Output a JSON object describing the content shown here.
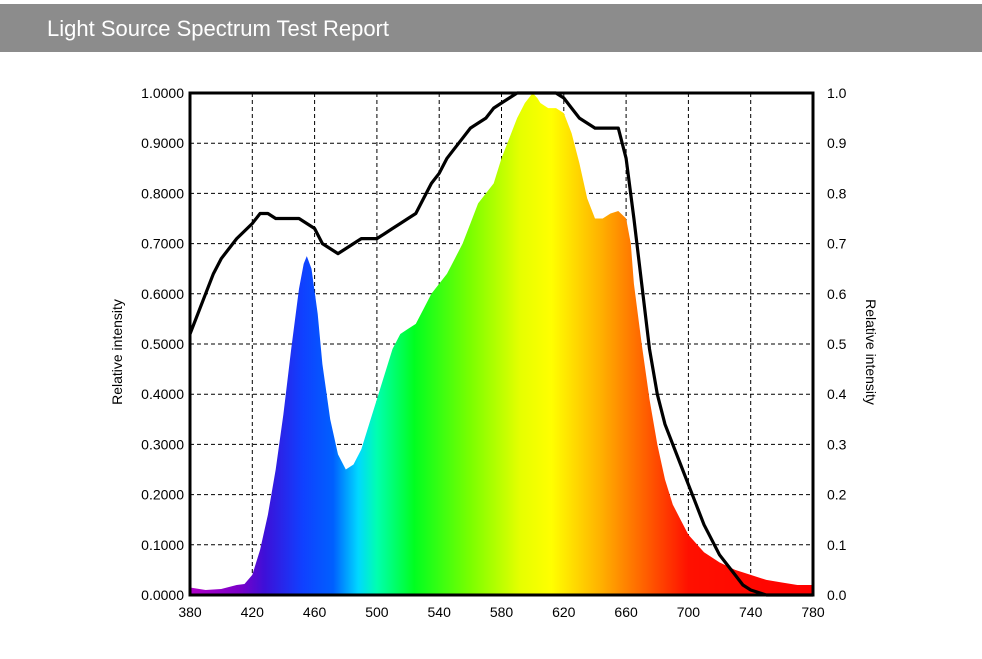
{
  "header": {
    "title": "Light Source Spectrum Test Report"
  },
  "colors": {
    "header_bg": "#8c8c8c",
    "curve": "#000000",
    "frame": "#000000"
  },
  "chart_data": {
    "type": "area",
    "title": "",
    "xlabel": "",
    "ylabel": "Relative intensity",
    "y2label": "Relative intensity",
    "xlim": [
      380,
      780
    ],
    "ylim": [
      0,
      1
    ],
    "y2lim": [
      0,
      1
    ],
    "grid": true,
    "legend": "none",
    "x_ticks": [
      "380",
      "420",
      "460",
      "500",
      "540",
      "580",
      "620",
      "660",
      "700",
      "740",
      "780"
    ],
    "y_ticks": [
      "0.0000",
      "0.1000",
      "0.2000",
      "0.3000",
      "0.4000",
      "0.5000",
      "0.6000",
      "0.7000",
      "0.8000",
      "0.9000",
      "1.0000"
    ],
    "y2_ticks": [
      "0.0",
      "0.1",
      "0.2",
      "0.3",
      "0.4",
      "0.5",
      "0.6",
      "0.7",
      "0.8",
      "0.9",
      "1.0"
    ],
    "series": [
      {
        "kind": "spectral fill",
        "x": [
          380,
          390,
          400,
          410,
          415,
          420,
          425,
          430,
          435,
          440,
          445,
          450,
          453,
          455,
          458,
          462,
          465,
          470,
          475,
          480,
          485,
          490,
          495,
          500,
          505,
          510,
          515,
          520,
          525,
          530,
          535,
          540,
          545,
          550,
          555,
          560,
          565,
          570,
          575,
          580,
          585,
          590,
          595,
          600,
          603,
          605,
          610,
          615,
          620,
          625,
          630,
          635,
          640,
          645,
          650,
          655,
          660,
          663,
          665,
          670,
          675,
          680,
          685,
          690,
          695,
          700,
          710,
          720,
          730,
          740,
          750,
          760,
          770,
          780
        ],
        "y": [
          0.015,
          0.01,
          0.012,
          0.02,
          0.022,
          0.04,
          0.09,
          0.16,
          0.25,
          0.36,
          0.49,
          0.61,
          0.66,
          0.675,
          0.65,
          0.56,
          0.46,
          0.35,
          0.28,
          0.25,
          0.26,
          0.29,
          0.34,
          0.39,
          0.44,
          0.49,
          0.52,
          0.53,
          0.54,
          0.57,
          0.6,
          0.62,
          0.64,
          0.67,
          0.7,
          0.74,
          0.78,
          0.8,
          0.82,
          0.87,
          0.91,
          0.95,
          0.98,
          1.0,
          0.99,
          0.98,
          0.97,
          0.97,
          0.96,
          0.92,
          0.86,
          0.79,
          0.75,
          0.75,
          0.76,
          0.765,
          0.75,
          0.7,
          0.62,
          0.5,
          0.39,
          0.3,
          0.23,
          0.18,
          0.15,
          0.12,
          0.085,
          0.065,
          0.05,
          0.04,
          0.03,
          0.025,
          0.02,
          0.02
        ]
      },
      {
        "kind": "line",
        "x": [
          380,
          385,
          390,
          395,
          400,
          410,
          420,
          425,
          430,
          435,
          440,
          445,
          450,
          455,
          460,
          465,
          470,
          475,
          480,
          485,
          490,
          495,
          500,
          505,
          510,
          515,
          520,
          525,
          530,
          535,
          540,
          545,
          550,
          555,
          560,
          565,
          570,
          575,
          580,
          585,
          590,
          595,
          600,
          605,
          610,
          615,
          620,
          625,
          630,
          635,
          640,
          645,
          650,
          655,
          660,
          665,
          670,
          675,
          680,
          685,
          690,
          695,
          700,
          705,
          710,
          715,
          720,
          725,
          730,
          735,
          740,
          745,
          750,
          755,
          760,
          765,
          770,
          775,
          780
        ],
        "y": [
          0.52,
          0.56,
          0.6,
          0.64,
          0.67,
          0.71,
          0.74,
          0.76,
          0.76,
          0.75,
          0.75,
          0.75,
          0.75,
          0.74,
          0.73,
          0.7,
          0.69,
          0.68,
          0.69,
          0.7,
          0.71,
          0.71,
          0.71,
          0.72,
          0.73,
          0.74,
          0.75,
          0.76,
          0.79,
          0.82,
          0.84,
          0.87,
          0.89,
          0.91,
          0.93,
          0.94,
          0.95,
          0.97,
          0.98,
          0.99,
          1.0,
          1.0,
          1.0,
          1.0,
          1.0,
          1.0,
          0.99,
          0.97,
          0.95,
          0.94,
          0.93,
          0.93,
          0.93,
          0.93,
          0.87,
          0.75,
          0.62,
          0.49,
          0.4,
          0.34,
          0.3,
          0.26,
          0.22,
          0.18,
          0.14,
          0.11,
          0.08,
          0.06,
          0.04,
          0.02,
          0.01,
          0.005,
          0.0,
          0.0,
          0.0,
          0.0,
          0.0,
          0.0,
          0.0
        ]
      }
    ]
  }
}
